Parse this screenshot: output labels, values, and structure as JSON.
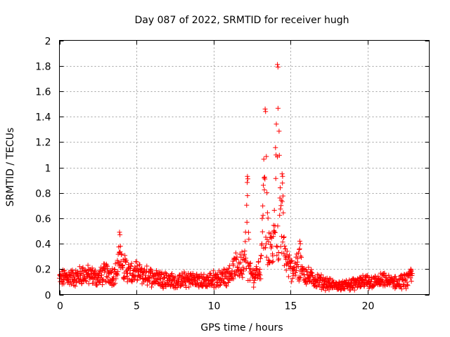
{
  "chart_data": {
    "type": "scatter",
    "title": "Day 087 of 2022, SRMTID for receiver hugh",
    "xlabel": "GPS time / hours",
    "ylabel": "SRMTID / TECUs",
    "xlim": [
      0,
      24
    ],
    "ylim": [
      0,
      2
    ],
    "xticks": [
      0,
      5,
      10,
      15,
      20
    ],
    "xtick_labels": [
      "0",
      "5",
      "10",
      "15",
      "20"
    ],
    "yticks": [
      0,
      0.2,
      0.4,
      0.6,
      0.8,
      1,
      1.2,
      1.4,
      1.6,
      1.8,
      2
    ],
    "ytick_labels": [
      "0",
      "0.2",
      "0.4",
      "0.6",
      "0.8",
      "1",
      "1.2",
      "1.4",
      "1.6",
      "1.8",
      "2"
    ],
    "grid": true,
    "marker": "+",
    "color": "#ff0000",
    "series": [
      {
        "name": "SRMTID",
        "profile_anchors": {
          "x": [
            0.0,
            0.5,
            1.0,
            1.5,
            2.0,
            2.5,
            3.0,
            3.5,
            3.9,
            4.2,
            4.6,
            5.0,
            5.5,
            6.0,
            6.5,
            7.0,
            7.5,
            8.0,
            8.5,
            9.0,
            9.5,
            10.0,
            10.5,
            11.0,
            11.5,
            12.0,
            12.3,
            12.6,
            13.0,
            13.3,
            13.6,
            14.0,
            14.3,
            14.6,
            15.0,
            15.3,
            15.7,
            16.0,
            16.5,
            17.0,
            17.5,
            18.0,
            18.5,
            19.0,
            19.5,
            20.0,
            20.5,
            21.0,
            21.5,
            22.0,
            22.5,
            22.9
          ],
          "base": [
            0.12,
            0.14,
            0.13,
            0.16,
            0.15,
            0.13,
            0.17,
            0.15,
            0.2,
            0.22,
            0.16,
            0.17,
            0.15,
            0.14,
            0.13,
            0.12,
            0.1,
            0.11,
            0.12,
            0.11,
            0.1,
            0.12,
            0.13,
            0.16,
            0.22,
            0.25,
            0.18,
            0.14,
            0.2,
            0.3,
            0.35,
            0.4,
            0.5,
            0.3,
            0.2,
            0.22,
            0.18,
            0.15,
            0.12,
            0.1,
            0.08,
            0.07,
            0.07,
            0.08,
            0.09,
            0.1,
            0.1,
            0.11,
            0.1,
            0.09,
            0.11,
            0.14
          ]
        },
        "peaks": [
          {
            "x": 3.9,
            "y": 0.49
          },
          {
            "x": 12.2,
            "y": 0.93
          },
          {
            "x": 13.35,
            "y": 1.46
          },
          {
            "x": 14.15,
            "y": 1.81
          },
          {
            "x": 14.45,
            "y": 0.95
          },
          {
            "x": 15.6,
            "y": 0.42
          },
          {
            "x": 22.8,
            "y": 0.2
          }
        ]
      }
    ]
  }
}
